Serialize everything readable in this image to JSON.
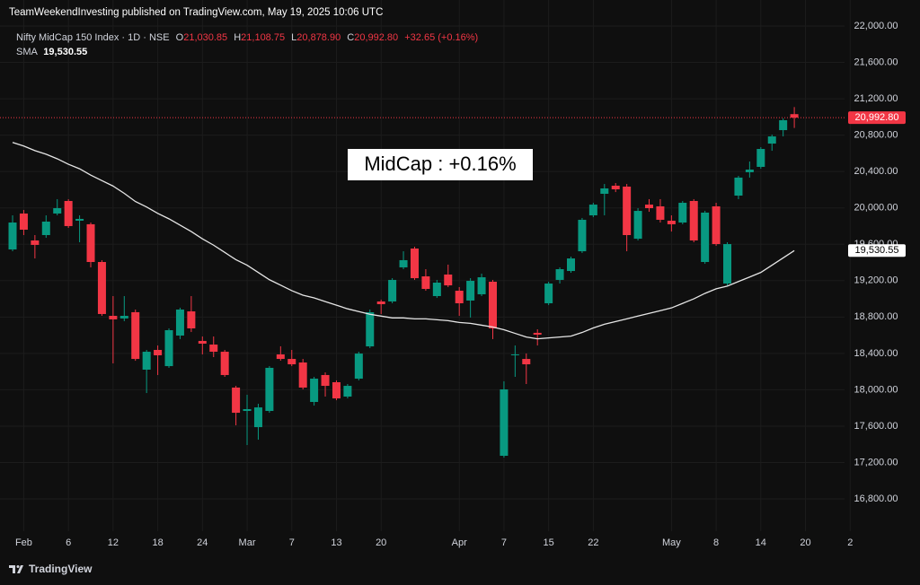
{
  "chart_data": {
    "type": "candlestick",
    "publisher": "TeamWeekendInvesting published on TradingView.com, May 19, 2025 10:06 UTC",
    "symbol": "Nifty MidCap 150 Index · 1D · NSE",
    "ohlc_legend": [
      {
        "label": "O",
        "value": "21,030.85"
      },
      {
        "label": "H",
        "value": "21,108.75"
      },
      {
        "label": "L",
        "value": "20,878.90"
      },
      {
        "label": "C",
        "value": "20,992.80"
      }
    ],
    "change": "+32.65 (+0.16%)",
    "annotation": "MidCap : +0.16%",
    "last_price_label": "20,992.80",
    "footer": "TradingView",
    "up_color": "#089981",
    "down_color": "#f23645",
    "categories": [
      null,
      "Feb",
      null,
      null,
      null,
      "6",
      null,
      null,
      null,
      "12",
      null,
      null,
      null,
      "18",
      null,
      null,
      null,
      "24",
      null,
      null,
      null,
      "Mar",
      null,
      null,
      null,
      "7",
      null,
      null,
      null,
      "13",
      null,
      null,
      null,
      "20",
      null,
      null,
      null,
      null,
      null,
      null,
      "Apr",
      null,
      null,
      null,
      "7",
      null,
      null,
      null,
      "15",
      null,
      null,
      null,
      "22",
      null,
      null,
      null,
      null,
      null,
      null,
      "May",
      null,
      null,
      null,
      "8",
      null,
      null,
      null,
      "14",
      null,
      null,
      null,
      "20",
      null,
      null,
      null,
      "2"
    ],
    "open": [
      19543,
      19938,
      19642,
      19701,
      19938,
      20076,
      19859,
      19820,
      19405,
      18813,
      18784,
      18853,
      18221,
      18438,
      18260,
      18596,
      18862,
      18537,
      18497,
      18418,
      18024,
      17767,
      17589,
      17767,
      18389,
      18339,
      18300,
      17866,
      18162,
      18083,
      17925,
      18122,
      18477,
      18971,
      18971,
      19346,
      19553,
      19247,
      19030,
      19267,
      19089,
      18981,
      19050,
      19188,
      17274,
      18379,
      18339,
      18626,
      18951,
      19208,
      19306,
      19523,
      19918,
      20155,
      20244,
      20234,
      19661,
      20036,
      20017,
      19859,
      19839,
      20076,
      19405,
      20017,
      19168,
      20135,
      20392,
      20451,
      20707,
      20855,
      21030.85,
      null,
      null,
      null,
      null,
      null
    ],
    "high": [
      19918,
      19977,
      19701,
      19918,
      20096,
      20096,
      19918,
      19839,
      19425,
      19030,
      19030,
      18882,
      18438,
      18487,
      18675,
      18902,
      19030,
      18586,
      18586,
      18438,
      18043,
      17945,
      17846,
      18260,
      18478,
      18438,
      18339,
      18142,
      18191,
      18103,
      18063,
      18418,
      18882,
      18991,
      19227,
      19523,
      19573,
      19326,
      19208,
      19376,
      19129,
      19227,
      19277,
      19208,
      18093,
      18487,
      18399,
      18665,
      19188,
      19346,
      19464,
      19889,
      20056,
      20263,
      20273,
      20263,
      19997,
      20096,
      20096,
      19918,
      20076,
      20096,
      19968,
      20056,
      19622,
      20352,
      20510,
      20668,
      20806,
      20984,
      21108.75,
      null,
      null,
      null,
      null,
      null
    ],
    "low": [
      19523,
      19701,
      19444,
      19671,
      19918,
      19780,
      19622,
      19346,
      18813,
      18290,
      18754,
      18319,
      17964,
      18162,
      18241,
      18557,
      18635,
      18389,
      18359,
      18142,
      17609,
      17392,
      17451,
      17747,
      18320,
      18260,
      18004,
      17826,
      17925,
      17885,
      17905,
      18103,
      18458,
      18833,
      18951,
      19326,
      19208,
      19089,
      19010,
      19129,
      18813,
      18794,
      19030,
      18557,
      17254,
      18142,
      18063,
      18487,
      18931,
      19168,
      19287,
      19504,
      19898,
      19918,
      20174,
      19523,
      19642,
      19957,
      19839,
      19740,
      19820,
      19622,
      19385,
      19583,
      19148,
      20096,
      20333,
      20431,
      20628,
      20786,
      20878.9,
      null,
      null,
      null,
      null,
      null
    ],
    "close": [
      19839,
      19760,
      19593,
      19849,
      19997,
      19800,
      19879,
      19405,
      18833,
      18774,
      18813,
      18339,
      18418,
      18379,
      18655,
      18882,
      18675,
      18507,
      18418,
      18162,
      17747,
      17787,
      17806,
      18241,
      18339,
      18280,
      18024,
      18122,
      18043,
      17905,
      18043,
      18398,
      18852,
      18941,
      19208,
      19425,
      19227,
      19109,
      19178,
      19148,
      18951,
      19198,
      19237,
      18675,
      18004,
      18389,
      18280,
      18606,
      19168,
      19326,
      19444,
      19869,
      20036,
      20214,
      20204,
      19701,
      19967,
      19997,
      19869,
      19820,
      20056,
      19642,
      19948,
      19602,
      19602,
      20333,
      20421,
      20648,
      20786,
      20964,
      20992.8,
      null,
      null,
      null,
      null,
      null
    ],
    "sma": {
      "name": "SMA",
      "color": "#e6e6e6",
      "last_label": "19,530.55",
      "values": [
        20720,
        20680,
        20630,
        20590,
        20540,
        20480,
        20430,
        20360,
        20300,
        20240,
        20160,
        20070,
        20010,
        19940,
        19880,
        19810,
        19740,
        19660,
        19590,
        19510,
        19430,
        19370,
        19290,
        19210,
        19150,
        19090,
        19040,
        19010,
        18970,
        18930,
        18890,
        18860,
        18830,
        18810,
        18790,
        18790,
        18780,
        18780,
        18770,
        18760,
        18740,
        18730,
        18710,
        18690,
        18660,
        18620,
        18580,
        18560,
        18570,
        18580,
        18590,
        18630,
        18680,
        18720,
        18750,
        18780,
        18810,
        18840,
        18870,
        18900,
        18950,
        19000,
        19060,
        19110,
        19140,
        19190,
        19240,
        19290,
        19370,
        19450,
        19530.55,
        null,
        null,
        null,
        null,
        null
      ]
    },
    "ylim": [
      16445,
      22286
    ],
    "yticks": [
      {
        "value": 16800,
        "label": "16,800.00"
      },
      {
        "value": 17200,
        "label": "17,200.00"
      },
      {
        "value": 17600,
        "label": "17,600.00"
      },
      {
        "value": 18000,
        "label": "18,000.00"
      },
      {
        "value": 18400,
        "label": "18,400.00"
      },
      {
        "value": 18800,
        "label": "18,800.00"
      },
      {
        "value": 19200,
        "label": "19,200.00"
      },
      {
        "value": 19600,
        "label": "19,600.00"
      },
      {
        "value": 20000,
        "label": "20,000.00"
      },
      {
        "value": 20400,
        "label": "20,400.00"
      },
      {
        "value": 20800,
        "label": "20,800.00"
      },
      {
        "value": 21200,
        "label": "21,200.00"
      },
      {
        "value": 21600,
        "label": "21,600.00"
      },
      {
        "value": 22000,
        "label": "22,000.00"
      }
    ],
    "grid": true
  }
}
